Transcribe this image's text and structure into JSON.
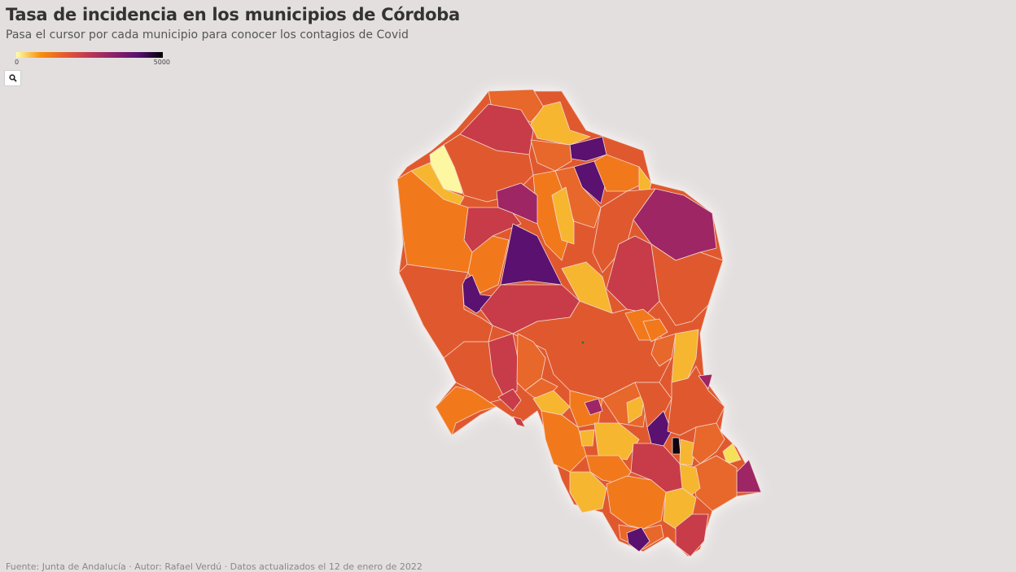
{
  "header": {
    "title": "Tasa de incidencia en los municipios de Córdoba",
    "subtitle": "Pasa el cursor por cada municipio para conocer los contagios de Covid"
  },
  "legend": {
    "min_label": "0",
    "max_label": "5000",
    "colors": [
      "#fcffa4",
      "#f98e09",
      "#e45a31",
      "#bc3754",
      "#8a226a",
      "#57106e",
      "#000004"
    ]
  },
  "controls": {
    "search_icon": "search-icon"
  },
  "footer": {
    "source": "Fuente: Junta de Andalucía · Autor: Rafael Verdú · Datos actualizados el 12 de enero de 2022"
  },
  "map": {
    "region": "Córdoba",
    "municipality_colors": {
      "very_low": "#fcf7a0",
      "low": "#f6b630",
      "mid_low": "#f2791b",
      "mid": "#e05a2e",
      "mid_high": "#c73c48",
      "high": "#9e2665",
      "very_high": "#5a1170",
      "max": "#0d0410"
    }
  }
}
